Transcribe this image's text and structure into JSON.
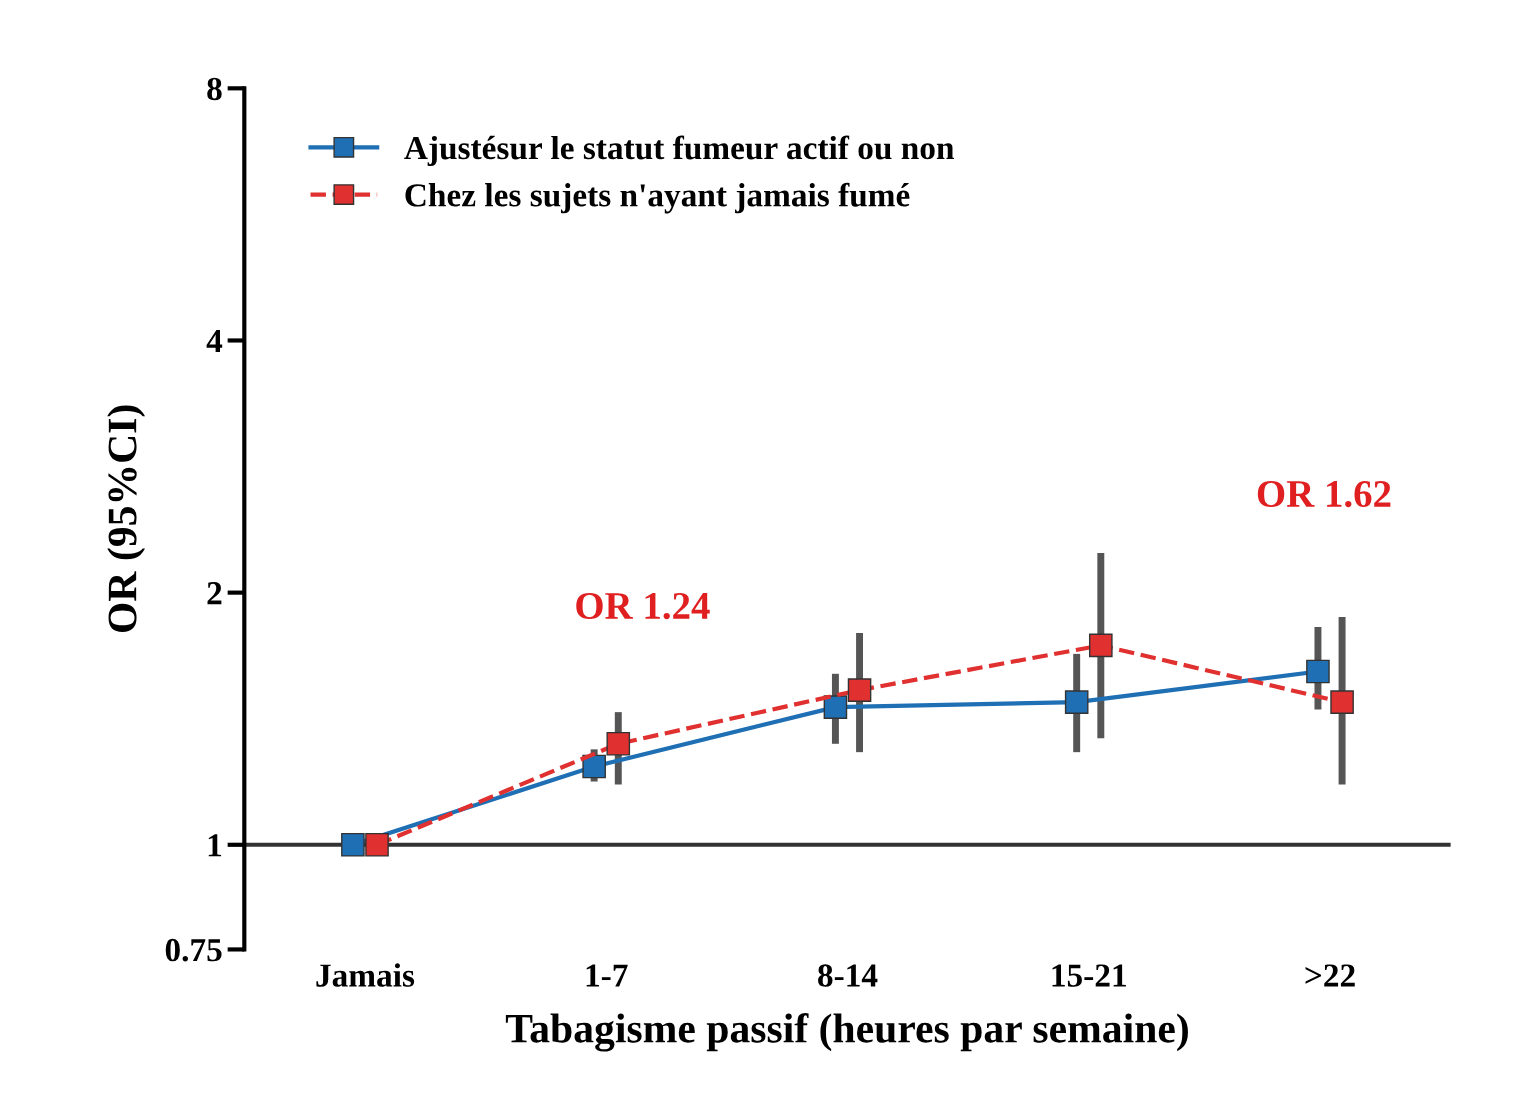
{
  "chart_data": {
    "type": "line",
    "xlabel": "Tabagisme passif (heures par semaine)",
    "ylabel": "OR (95%CI)",
    "categories": [
      "Jamais",
      "1-7",
      "8-14",
      "15-21",
      ">22"
    ],
    "series": [
      {
        "name": "Ajustésur le statut fumeur actif ou non",
        "color": "#1f6fb5",
        "line_style": "solid",
        "values": [
          1.0,
          1.24,
          1.46,
          1.48,
          1.61
        ],
        "errors": [
          null,
          [
            1.19,
            1.3
          ],
          [
            1.32,
            1.6
          ],
          [
            1.29,
            1.69
          ],
          [
            1.45,
            1.82
          ]
        ]
      },
      {
        "name": "Chez les sujets n'ayant jamais fumé",
        "color": "#e03030",
        "line_style": "dashed",
        "values": [
          1.0,
          1.32,
          1.53,
          1.73,
          1.48
        ],
        "errors": [
          null,
          [
            1.18,
            1.44
          ],
          [
            1.29,
            1.79
          ],
          [
            1.34,
            2.23
          ],
          [
            1.18,
            1.87
          ]
        ]
      }
    ],
    "annotations": [
      "OR 1.24",
      "OR 1.62"
    ],
    "ref_lines": [
      {
        "axis": "y",
        "value": 1,
        "color": "#333333"
      }
    ],
    "log": "y",
    "ylim": [
      0.75,
      8
    ],
    "yticks": [
      0.75,
      1,
      2,
      4,
      8
    ],
    "marker": "square",
    "legend": "top left",
    "grid": false
  }
}
